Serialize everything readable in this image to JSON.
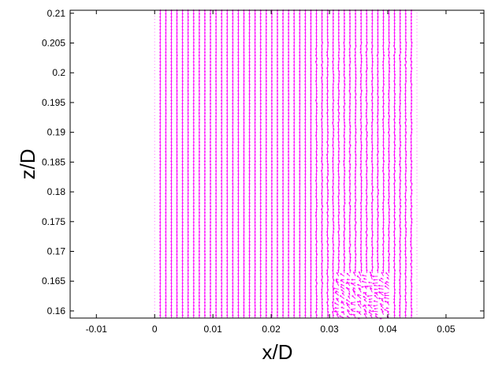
{
  "chart_data": {
    "type": "quiver",
    "xlabel": "x/D",
    "ylabel": "z/D",
    "xlim": [
      -0.0145,
      0.0565
    ],
    "ylim": [
      0.1588,
      0.2105
    ],
    "x_ticks": [
      "-0.01",
      "0",
      "0.01",
      "0.02",
      "0.03",
      "0.04",
      "0.05"
    ],
    "y_ticks": [
      "0.16",
      "0.165",
      "0.17",
      "0.175",
      "0.18",
      "0.185",
      "0.19",
      "0.195",
      "0.2",
      "0.205",
      "0.21"
    ],
    "grid": false,
    "legend": "none",
    "arrow_color": "#ff00ff",
    "field": {
      "x_start": 0.0,
      "x_end": 0.045,
      "x_columns": 48,
      "z_start": 0.1588,
      "z_end": 0.21,
      "z_rows": 96,
      "dominant_direction": "vertical",
      "disturbed_region": {
        "x_from": 0.031,
        "x_to": 0.041,
        "z_from": 0.1588,
        "z_to": 0.166
      }
    }
  }
}
